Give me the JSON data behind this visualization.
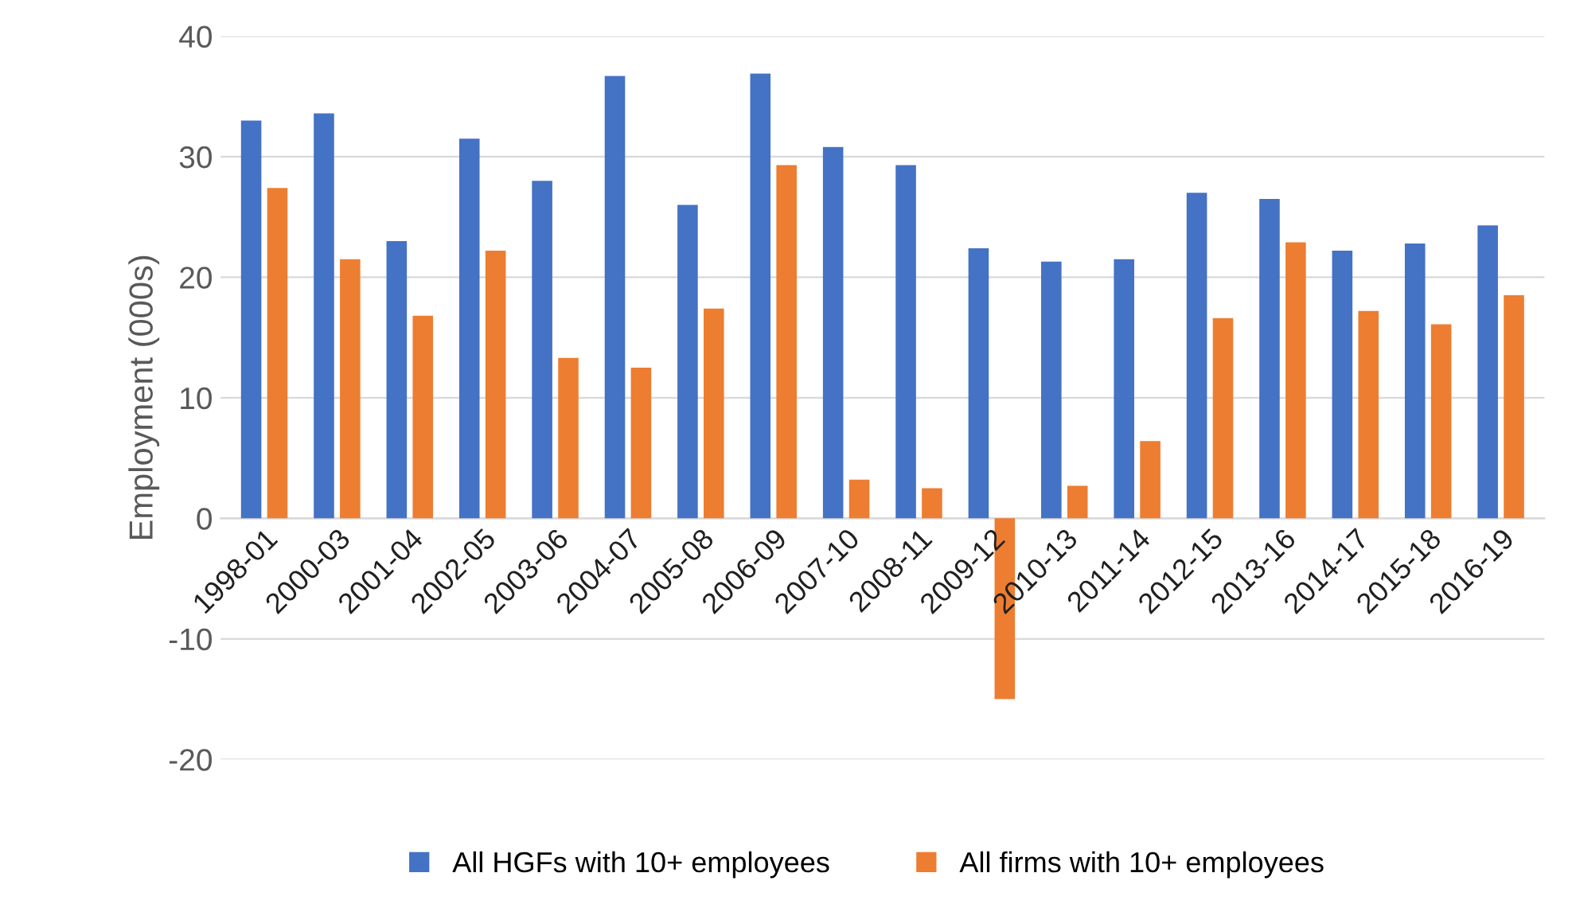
{
  "chart_data": {
    "type": "bar",
    "ylabel": "Employment (000s)",
    "categories": [
      "1998-01",
      "2000-03",
      "2001-04",
      "2002-05",
      "2003-06",
      "2004-07",
      "2005-08",
      "2006-09",
      "2007-10",
      "2008-11",
      "2009-12",
      "2010-13",
      "2011-14",
      "2012-15",
      "2013-16",
      "2014-17",
      "2015-18",
      "2016-19"
    ],
    "series": [
      {
        "name": "All HGFs with 10+ employees",
        "color": "#4472c4",
        "values": [
          33.0,
          33.6,
          23.0,
          31.5,
          28.0,
          36.7,
          26.0,
          36.9,
          30.8,
          29.3,
          22.4,
          21.3,
          21.5,
          27.0,
          26.5,
          22.2,
          22.8,
          24.3
        ]
      },
      {
        "name": "All firms with 10+ employees",
        "color": "#ed7d31",
        "values": [
          27.4,
          21.5,
          16.8,
          22.2,
          13.3,
          12.5,
          17.4,
          29.3,
          3.2,
          2.5,
          -15.0,
          2.7,
          6.4,
          16.6,
          22.9,
          17.2,
          16.1,
          18.5
        ]
      }
    ],
    "ylim": [
      -20,
      40
    ],
    "yticks": [
      -20,
      -10,
      0,
      10,
      20,
      30,
      40
    ],
    "grid": "y",
    "legend": "bottom"
  }
}
